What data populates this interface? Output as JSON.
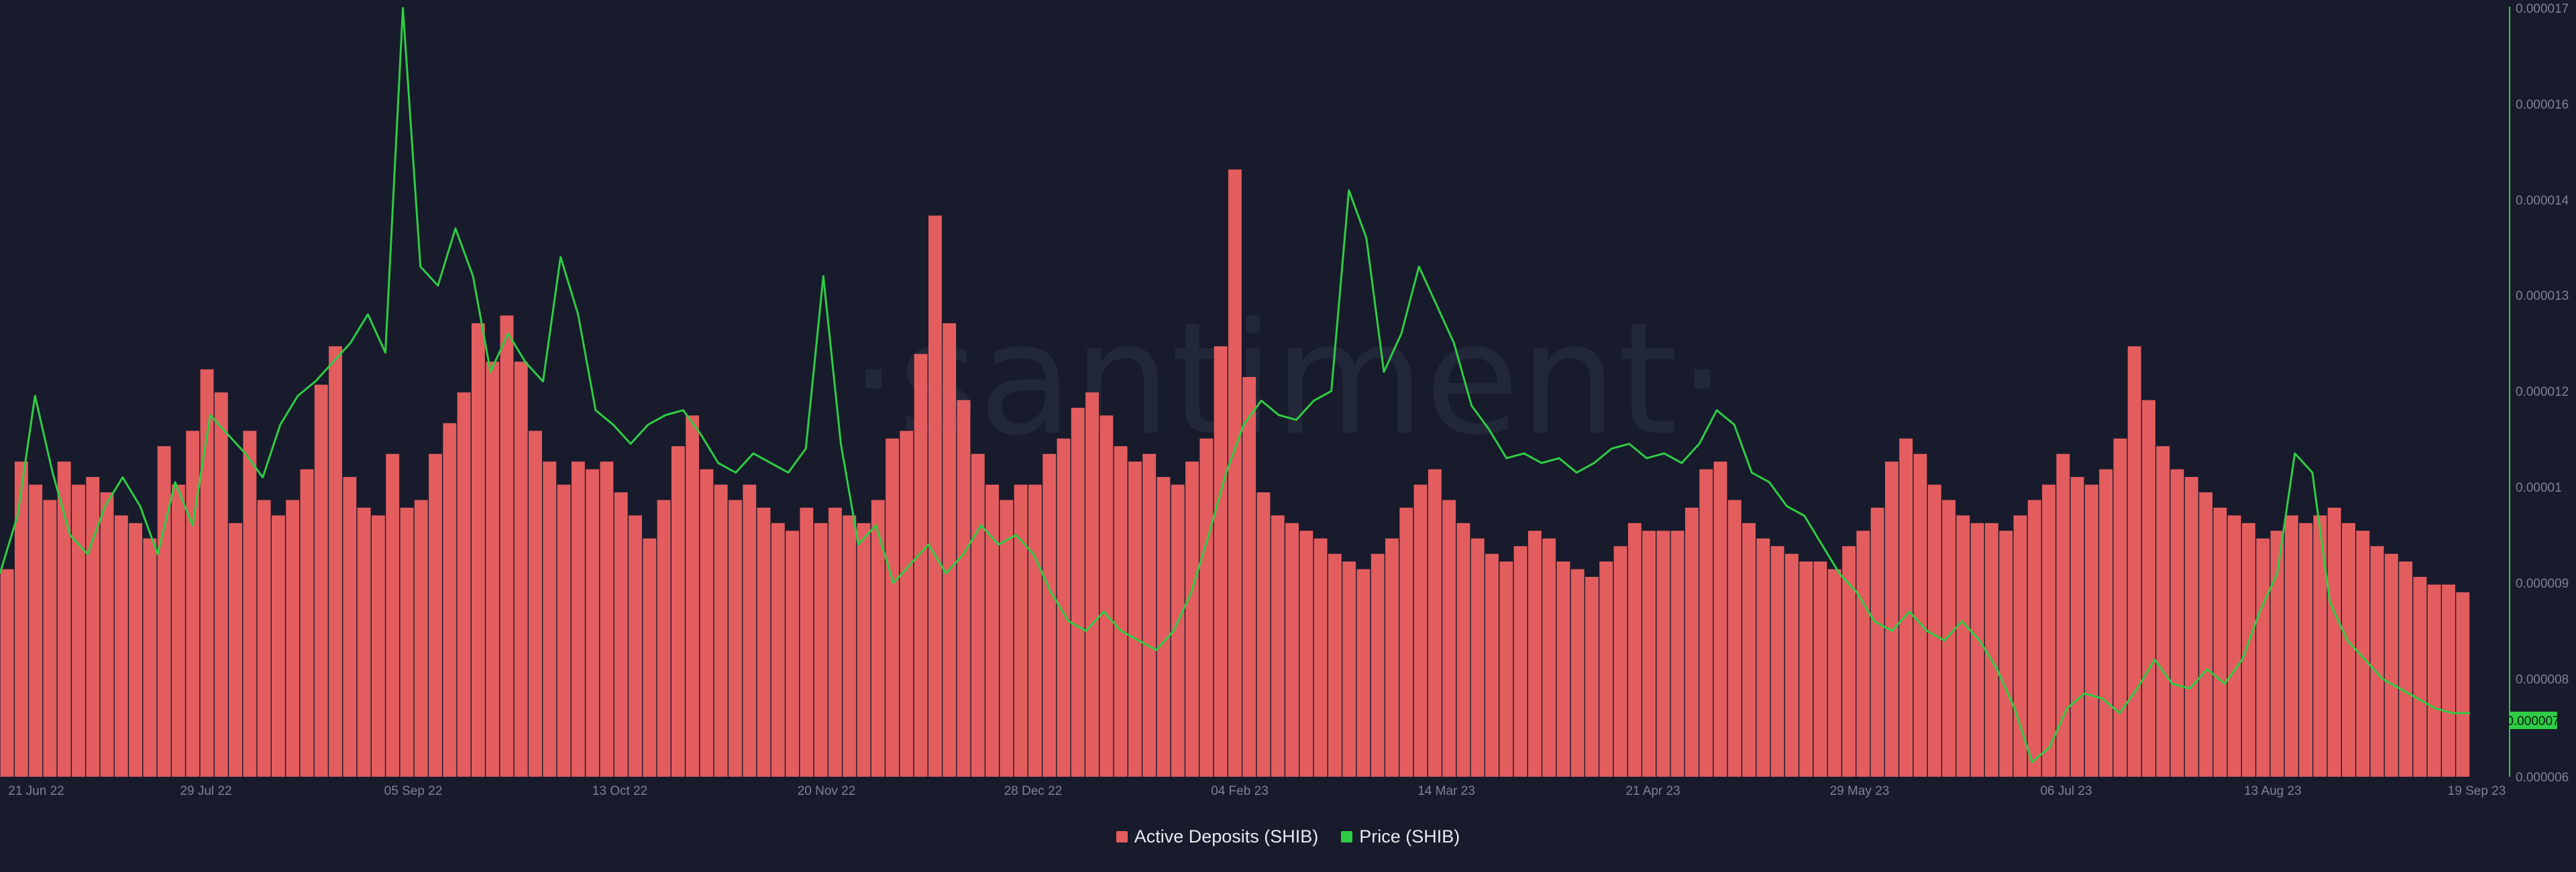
{
  "chart_data": {
    "type": "bar+line",
    "watermark": "·santiment·",
    "x_tick_labels": [
      "21 Jun 22",
      "29 Jul 22",
      "05 Sep 22",
      "13 Oct 22",
      "20 Nov 22",
      "28 Dec 22",
      "04 Feb 23",
      "14 Mar 23",
      "21 Apr 23",
      "29 May 23",
      "06 Jul 23",
      "13 Aug 23",
      "19 Sep 23"
    ],
    "y_right_tick_labels": [
      "0.000017",
      "0.000016",
      "0.000014",
      "0.000013",
      "0.000012",
      "0.00001",
      "0.000009",
      "0.000008",
      "0.000006"
    ],
    "price_badge": "0.000007",
    "grid": false,
    "legend_position": "bottom-center",
    "colors": {
      "deposits": "#e35d5f",
      "price": "#2fcc45",
      "background": "#181b2b"
    },
    "series": [
      {
        "name": "Active Deposits (SHIB)",
        "kind": "bar",
        "sampled_values_relative": [
          0.27,
          0.41,
          0.38,
          0.36,
          0.41,
          0.38,
          0.39,
          0.37,
          0.34,
          0.33,
          0.31,
          0.43,
          0.38,
          0.45,
          0.53,
          0.5,
          0.33,
          0.45,
          0.36,
          0.34,
          0.36,
          0.4,
          0.51,
          0.56,
          0.39,
          0.35,
          0.34,
          0.42,
          0.35,
          0.36,
          0.42,
          0.46,
          0.5,
          0.59,
          0.54,
          0.6,
          0.54,
          0.45,
          0.41,
          0.38,
          0.41,
          0.4,
          0.41,
          0.37,
          0.34,
          0.31,
          0.36,
          0.43,
          0.47,
          0.4,
          0.38,
          0.36,
          0.38,
          0.35,
          0.33,
          0.32,
          0.35,
          0.33,
          0.35,
          0.34,
          0.33,
          0.36,
          0.44,
          0.45,
          0.55,
          0.73,
          0.59,
          0.49,
          0.42,
          0.38,
          0.36,
          0.38,
          0.38,
          0.42,
          0.44,
          0.48,
          0.5,
          0.47,
          0.43,
          0.41,
          0.42,
          0.39,
          0.38,
          0.41,
          0.44,
          0.56,
          0.79,
          0.52,
          0.37,
          0.34,
          0.33,
          0.32,
          0.31,
          0.29,
          0.28,
          0.27,
          0.29,
          0.31,
          0.35,
          0.38,
          0.4,
          0.36,
          0.33,
          0.31,
          0.29,
          0.28,
          0.3,
          0.32,
          0.31,
          0.28,
          0.27,
          0.26,
          0.28,
          0.3,
          0.33,
          0.32,
          0.32,
          0.32,
          0.35,
          0.4,
          0.41,
          0.36,
          0.33,
          0.31,
          0.3,
          0.29,
          0.28,
          0.28,
          0.27,
          0.3,
          0.32,
          0.35,
          0.41,
          0.44,
          0.42,
          0.38,
          0.36,
          0.34,
          0.33,
          0.33,
          0.32,
          0.34,
          0.36,
          0.38,
          0.42,
          0.39,
          0.38,
          0.4,
          0.44,
          0.56,
          0.49,
          0.43,
          0.4,
          0.39,
          0.37,
          0.35,
          0.34,
          0.33,
          0.31,
          0.32,
          0.34,
          0.33,
          0.34,
          0.35,
          0.33,
          0.32,
          0.3,
          0.29,
          0.28,
          0.26,
          0.25,
          0.25,
          0.24
        ]
      },
      {
        "name": "Price (SHIB)",
        "kind": "line",
        "sampled_values": [
          9.1e-06,
          9.7e-06,
          1.19e-05,
          1.03e-05,
          9.5e-06,
          9.3e-06,
          9.8e-06,
          1.02e-05,
          9.8e-06,
          9.3e-06,
          1.01e-05,
          9.6e-06,
          1.15e-05,
          1.11e-05,
          1.07e-05,
          1.02e-05,
          1.13e-05,
          1.19e-05,
          1.21e-05,
          1.23e-05,
          1.25e-05,
          1.28e-05,
          1.24e-05,
          1.7e-05,
          1.33e-05,
          1.31e-05,
          1.37e-05,
          1.32e-05,
          1.22e-05,
          1.26e-05,
          1.23e-05,
          1.21e-05,
          1.34e-05,
          1.28e-05,
          1.16e-05,
          1.13e-05,
          1.09e-05,
          1.13e-05,
          1.15e-05,
          1.16e-05,
          1.11e-05,
          1.05e-05,
          1.03e-05,
          1.07e-05,
          1.05e-05,
          1.03e-05,
          1.08e-05,
          1.32e-05,
          1.09e-05,
          9.4e-06,
          9.6e-06,
          9e-06,
          9.2e-06,
          9.4e-06,
          9.1e-06,
          9.3e-06,
          9.6e-06,
          9.4e-06,
          9.5e-06,
          9.3e-06,
          8.9e-06,
          8.6e-06,
          8.5e-06,
          8.7e-06,
          8.5e-06,
          8.4e-06,
          8.3e-06,
          8.5e-06,
          8.9e-06,
          9.5e-06,
          1.03e-05,
          1.13e-05,
          1.18e-05,
          1.15e-05,
          1.14e-05,
          1.18e-05,
          1.2e-05,
          1.42e-05,
          1.36e-05,
          1.22e-05,
          1.26e-05,
          1.33e-05,
          1.29e-05,
          1.25e-05,
          1.17e-05,
          1.12e-05,
          1.06e-05,
          1.07e-05,
          1.05e-05,
          1.06e-05,
          1.03e-05,
          1.05e-05,
          1.08e-05,
          1.09e-05,
          1.06e-05,
          1.07e-05,
          1.05e-05,
          1.09e-05,
          1.16e-05,
          1.13e-05,
          1.03e-05,
          1.01e-05,
          9.8e-06,
          9.7e-06,
          9.4e-06,
          9.1e-06,
          8.9e-06,
          8.6e-06,
          8.5e-06,
          8.7e-06,
          8.5e-06,
          8.4e-06,
          8.6e-06,
          8.4e-06,
          8.1e-06,
          7.4e-06,
          6.3e-06,
          6.6e-06,
          7.4e-06,
          7.7e-06,
          7.6e-06,
          7.3e-06,
          7.8e-06,
          8.2e-06,
          7.9e-06,
          7.8e-06,
          8.1e-06,
          7.9e-06,
          8.2e-06,
          8.7e-06,
          9.1e-06,
          1.07e-05,
          1.03e-05,
          8.8e-06,
          8.4e-06,
          8.2e-06,
          8e-06,
          7.8e-06,
          7.6e-06,
          7.4e-06,
          7.3e-06,
          7.3e-06
        ]
      }
    ]
  }
}
